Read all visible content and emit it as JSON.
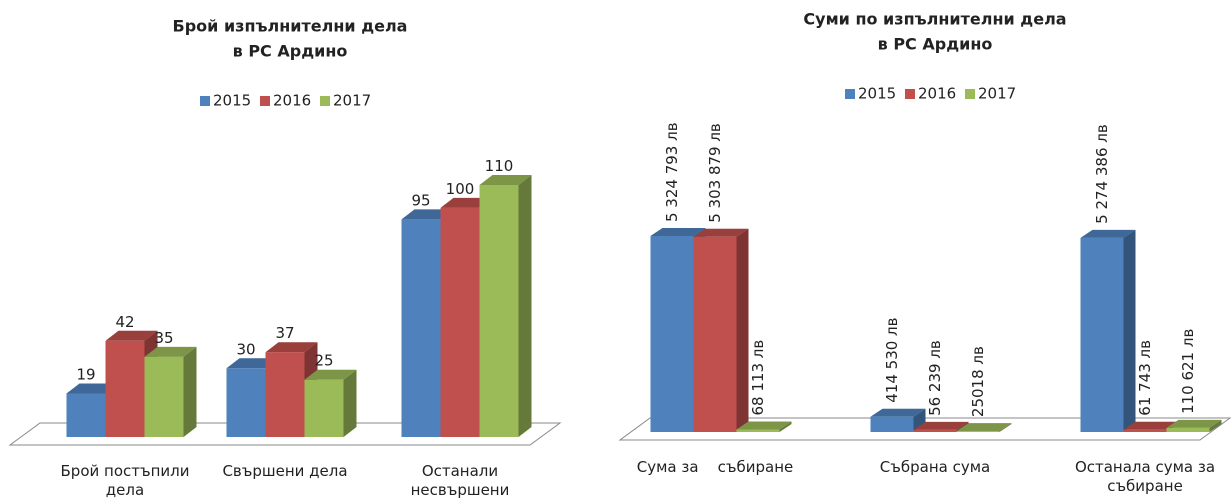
{
  "chart_data": [
    {
      "type": "bar3d",
      "title": [
        "Брой изпълнителни дела",
        "в РС Ардино"
      ],
      "categories": [
        "Брой постъпили дела",
        "Свършени дела",
        "Останали несвършени дела"
      ],
      "series": [
        {
          "name": "2015",
          "color": "#4f81bd",
          "values": [
            19,
            30,
            95
          ]
        },
        {
          "name": "2016",
          "color": "#c0504d",
          "values": [
            42,
            37,
            100
          ]
        },
        {
          "name": "2017",
          "color": "#9bbb59",
          "values": [
            35,
            25,
            110
          ]
        }
      ],
      "legend": "top"
    },
    {
      "type": "bar3d",
      "title": [
        "Суми по изпълнителни дела",
        "в РС Ардино"
      ],
      "categories": [
        "Сума за    събиране",
        "Събрана сума",
        "Останала сума за събиране"
      ],
      "series": [
        {
          "name": "2015",
          "color": "#4f81bd",
          "values": [
            5324793,
            414530,
            5274386
          ],
          "value_labels": [
            "5 324 793 лв",
            "414 530 лв",
            "5 274 386 лв"
          ]
        },
        {
          "name": "2016",
          "color": "#c0504d",
          "values": [
            5303879,
            56239,
            61743
          ],
          "value_labels": [
            "5 303 879 лв",
            "56 239 лв",
            "61 743 лв"
          ]
        },
        {
          "name": "2017",
          "color": "#9bbb59",
          "values": [
            68113,
            25018,
            110621
          ],
          "value_labels": [
            "68 113 лв",
            "25018 лв",
            "110 621 лв"
          ]
        }
      ],
      "legend": "top"
    }
  ]
}
